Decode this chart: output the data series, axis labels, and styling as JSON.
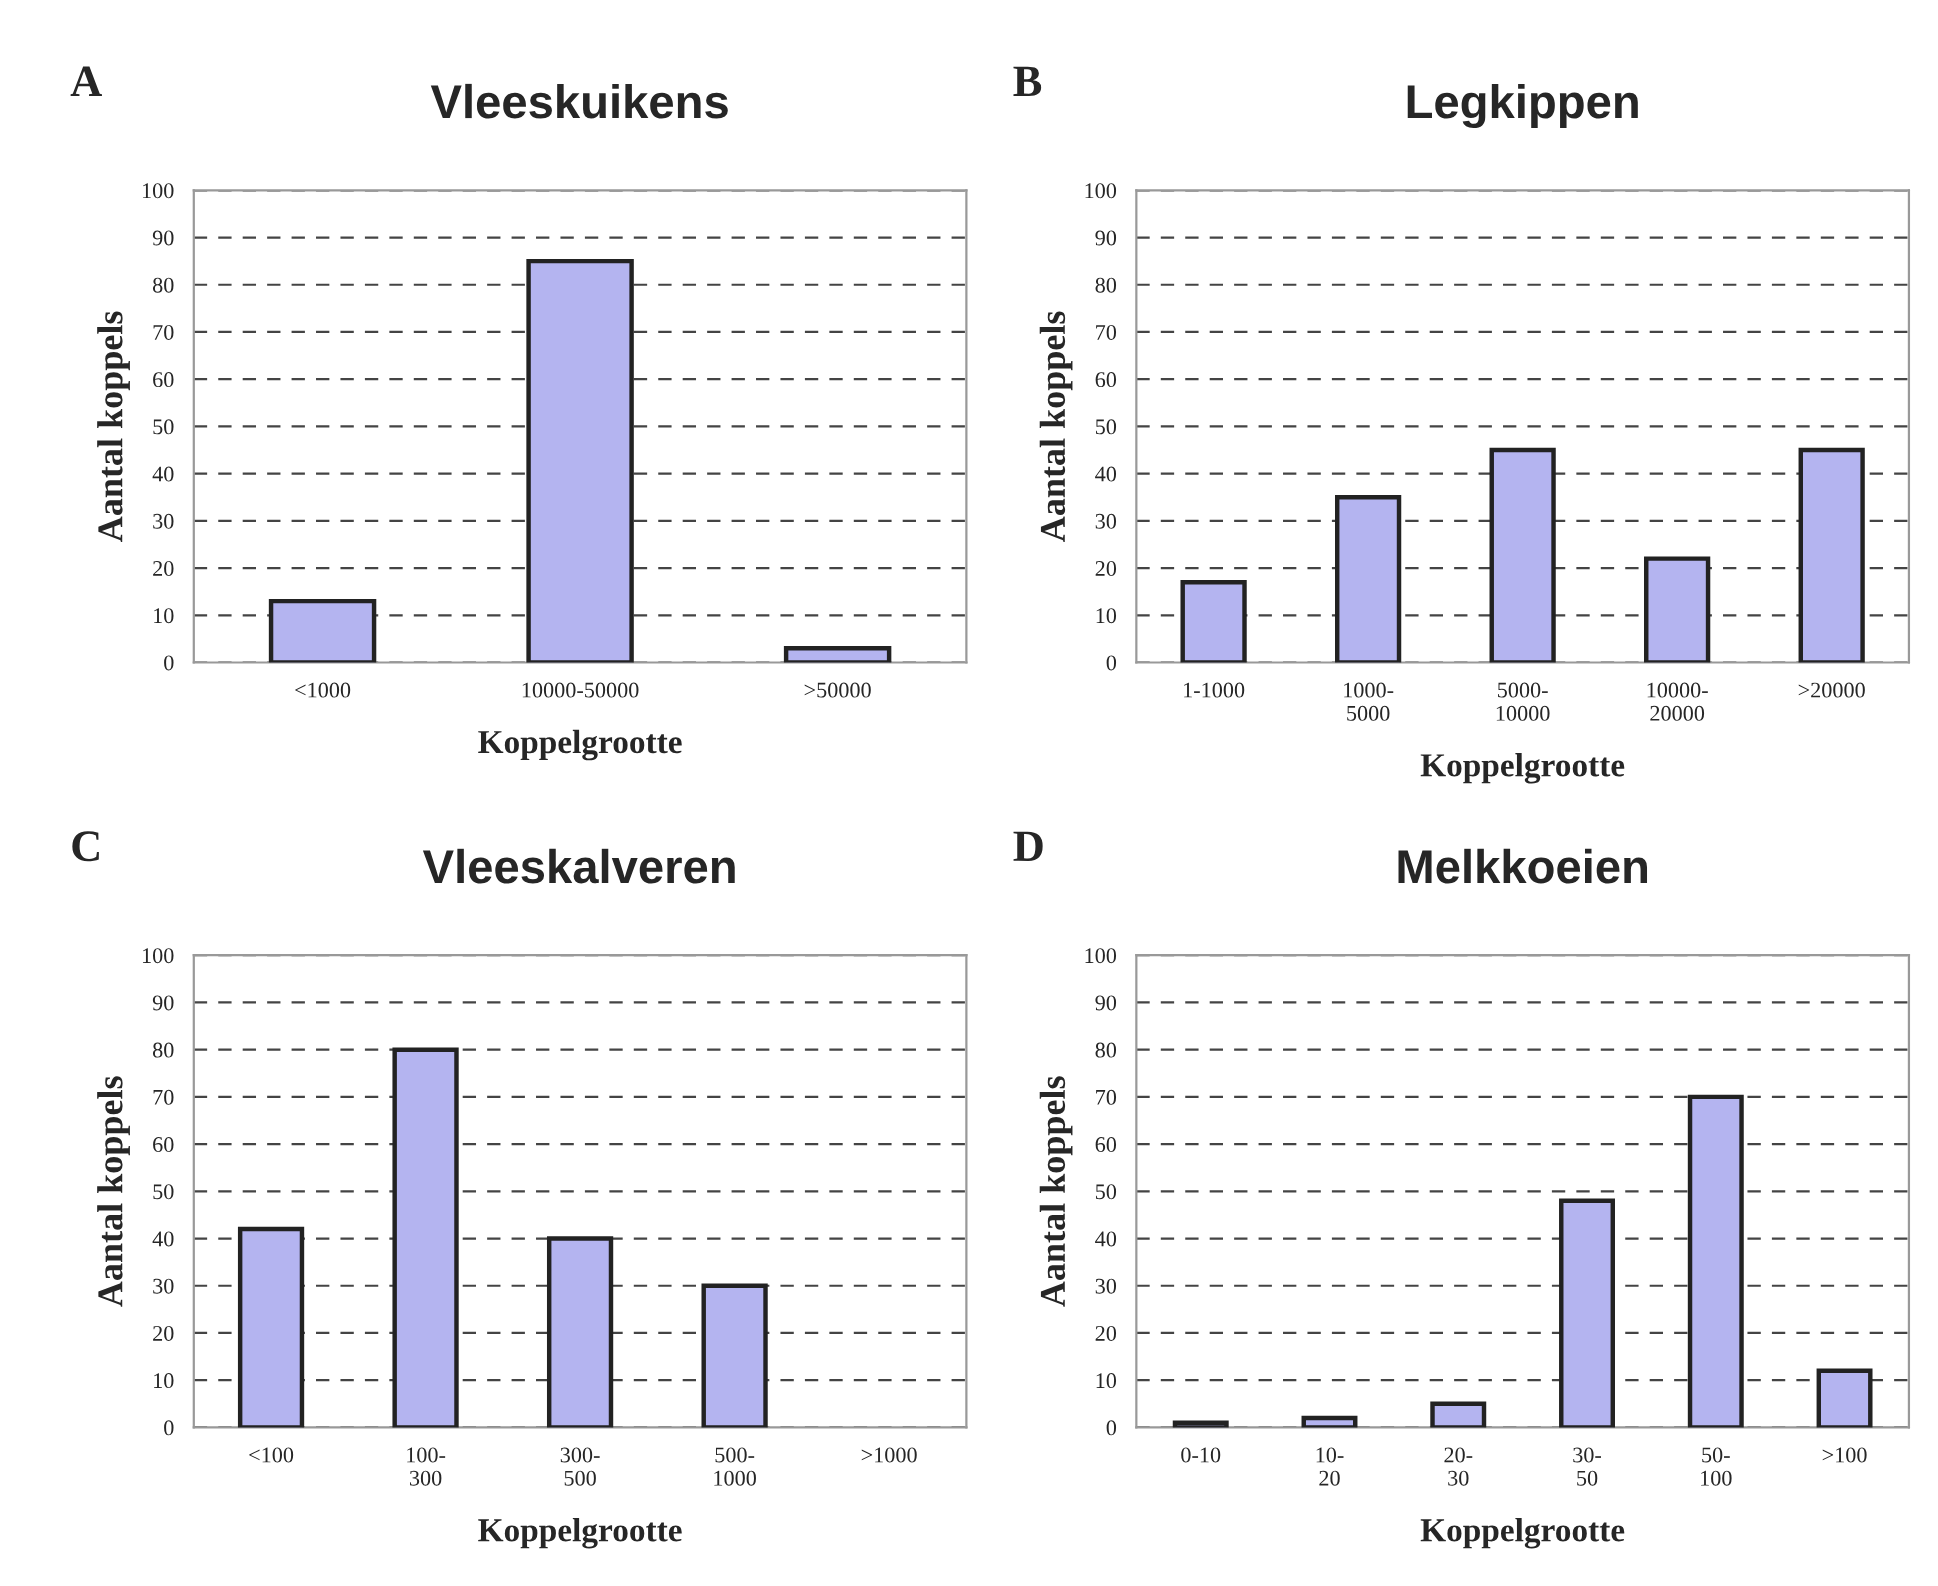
{
  "chart_data": [
    {
      "type": "bar",
      "title": "Vleeskuikens",
      "annotations": [
        "A"
      ],
      "xlabel": "Koppelgrootte",
      "ylabel": "Aantal koppels",
      "categories": [
        "<1000",
        "10000-50000",
        ">50000"
      ],
      "values": [
        13,
        85,
        3
      ],
      "color": "#b4b4f0",
      "ylim": [
        0,
        100
      ],
      "yticks": [
        0,
        10,
        20,
        30,
        40,
        50,
        60,
        70,
        80,
        90,
        100
      ],
      "grid": "y"
    },
    {
      "type": "bar",
      "title": "Legkippen",
      "annotations": [
        "B"
      ],
      "xlabel": "Koppelgrootte",
      "ylabel": "Aantal koppels",
      "categories": [
        "1-1000",
        "1000-\n5000",
        "5000-\n10000",
        "10000-\n20000",
        ">20000"
      ],
      "values": [
        17,
        35,
        45,
        22,
        45
      ],
      "color": "#b4b4f0",
      "ylim": [
        0,
        100
      ],
      "yticks": [
        0,
        10,
        20,
        30,
        40,
        50,
        60,
        70,
        80,
        90,
        100
      ],
      "grid": "y"
    },
    {
      "type": "bar",
      "title": "Vleeskalveren",
      "annotations": [
        "C"
      ],
      "xlabel": "Koppelgrootte",
      "ylabel": "Aantal koppels",
      "categories": [
        "<100",
        "100-\n300",
        "300-\n500",
        "500-\n1000",
        ">1000"
      ],
      "values": [
        42,
        80,
        40,
        30,
        null
      ],
      "color": "#b4b4f0",
      "ylim": [
        0,
        100
      ],
      "yticks": [
        0,
        10,
        20,
        30,
        40,
        50,
        60,
        70,
        80,
        90,
        100
      ],
      "grid": "y"
    },
    {
      "type": "bar",
      "title": "Melkkoeien",
      "annotations": [
        "D"
      ],
      "xlabel": "Koppelgrootte",
      "ylabel": "Aantal koppels",
      "categories": [
        "0-10",
        "10-\n20",
        "20-\n30",
        "30-\n50",
        "50-\n100",
        ">100"
      ],
      "values": [
        1,
        2,
        5,
        48,
        70,
        12
      ],
      "color": "#b4b4f0",
      "ylim": [
        0,
        100
      ],
      "yticks": [
        0,
        10,
        20,
        30,
        40,
        50,
        60,
        70,
        80,
        90,
        100
      ],
      "grid": "y"
    }
  ]
}
